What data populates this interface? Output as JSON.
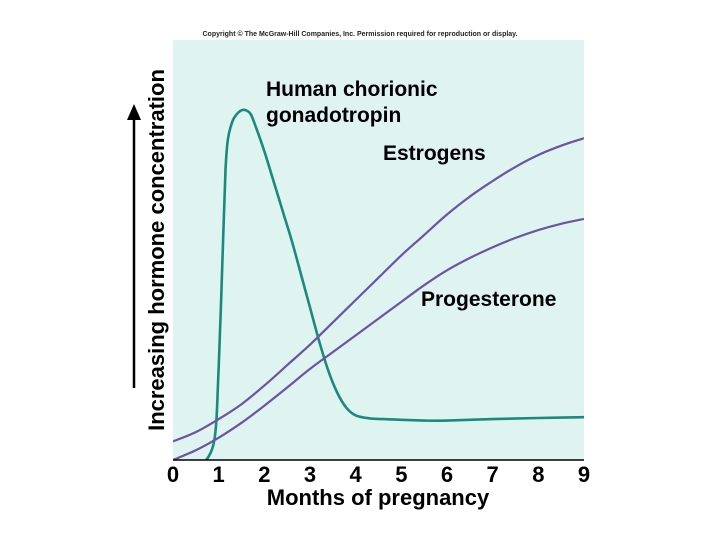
{
  "copyright": "Copyright © The McGraw-Hill Companies, Inc. Permission required for reproduction or display.",
  "chart_data": {
    "type": "line",
    "xlabel": "Months of pregnancy",
    "ylabel": "Increasing hormone concentration",
    "xlim": [
      0,
      9
    ],
    "ylim": [
      0,
      100
    ],
    "x_ticks": [
      "0",
      "1",
      "2",
      "3",
      "4",
      "5",
      "6",
      "7",
      "8",
      "9"
    ],
    "grid": false,
    "colors": {
      "background": "#dff3f1",
      "hcg": "#1a8a7c",
      "estrogen": "#6a55a0",
      "progesterone": "#6a55a0"
    },
    "series": [
      {
        "key": "hcg",
        "name": "Human chorionic gonadotropin",
        "name_lines": [
          "Human chorionic",
          "gonadotropin"
        ],
        "x": [
          0.6,
          0.9,
          1.0,
          1.1,
          1.15,
          1.2,
          1.3,
          1.4,
          1.5,
          1.6,
          1.7,
          1.8,
          2.0,
          2.2,
          2.4,
          2.6,
          2.8,
          3.0,
          3.2,
          3.4,
          3.6,
          3.8,
          4.0,
          4.3,
          4.6,
          5.0,
          5.5,
          6.0,
          7.0,
          8.0,
          9.0
        ],
        "values": [
          -2,
          5,
          25,
          60,
          78,
          86,
          91,
          93,
          94,
          94,
          93,
          90,
          83,
          75,
          67,
          59,
          50,
          41,
          32,
          24,
          18,
          14,
          12,
          11.2,
          11,
          10.8,
          10.6,
          10.6,
          11,
          11.3,
          11.5
        ]
      },
      {
        "key": "estrogen",
        "name": "Estrogens",
        "x": [
          0,
          0.5,
          1,
          1.5,
          2,
          2.5,
          3,
          3.5,
          4,
          4.5,
          5,
          5.5,
          6,
          6.5,
          7,
          7.5,
          8,
          8.5,
          9
        ],
        "values": [
          5,
          7.5,
          11,
          15,
          20,
          25.5,
          31,
          37,
          43,
          49,
          55,
          60.5,
          66,
          70.8,
          75,
          78.8,
          82,
          84.5,
          86.5
        ]
      },
      {
        "key": "progesterone",
        "name": "Progesterone",
        "x": [
          0,
          0.5,
          1,
          1.5,
          2,
          2.5,
          3,
          3.5,
          4,
          4.5,
          5,
          5.5,
          6,
          6.5,
          7,
          7.5,
          8,
          8.5,
          9
        ],
        "values": [
          0,
          2.6,
          6,
          10,
          14.6,
          19.5,
          24.5,
          29,
          33.5,
          38,
          42.5,
          47,
          51,
          54.3,
          57.2,
          59.7,
          61.8,
          63.5,
          64.8
        ]
      }
    ]
  }
}
